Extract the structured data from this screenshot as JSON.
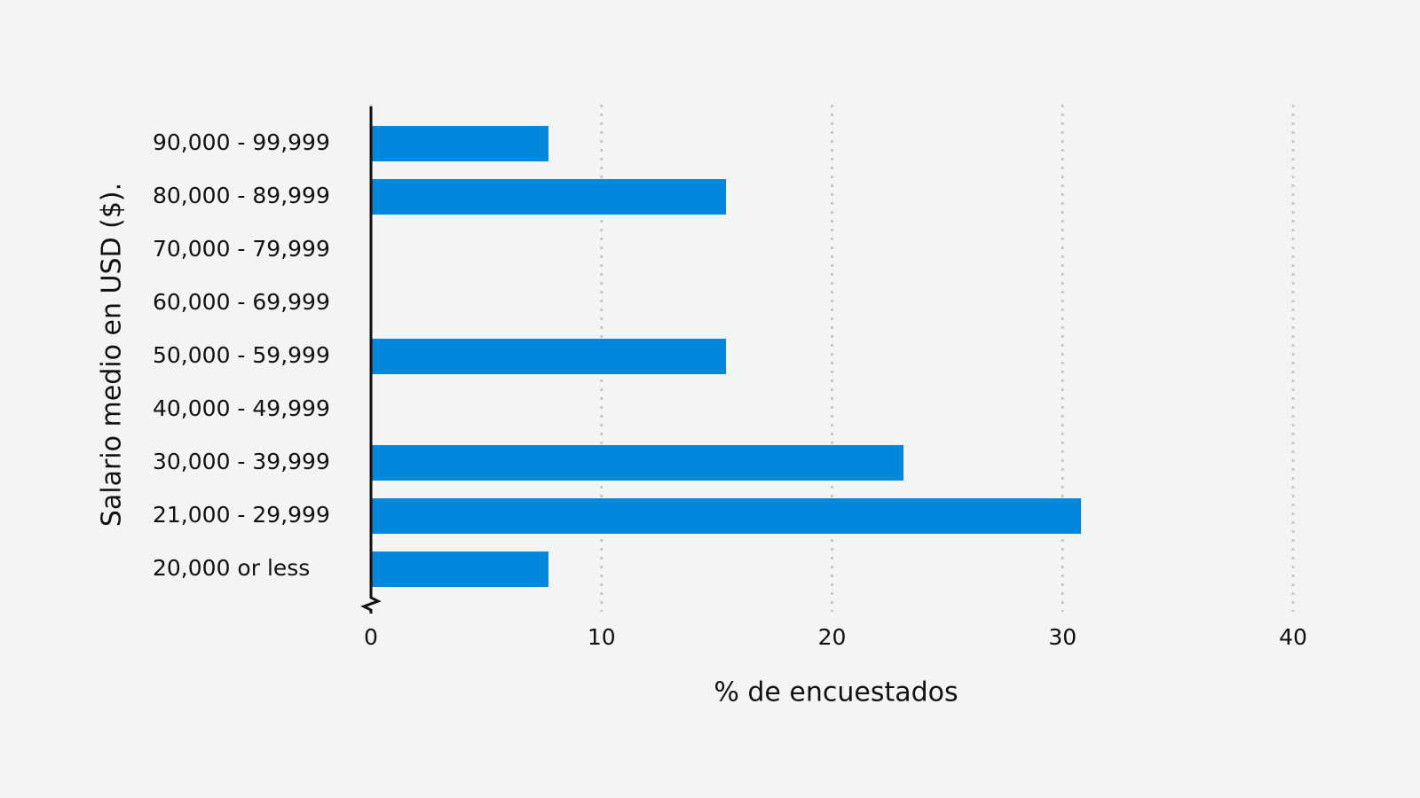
{
  "chart_data": {
    "type": "bar",
    "orientation": "horizontal",
    "xlabel": "% de encuestados",
    "ylabel": "Salario medio en USD ($).",
    "categories": [
      "90,000 - 99,999",
      "80,000 - 89,999",
      "70,000 - 79,999",
      "60,000 - 69,999",
      "50,000 - 59,999",
      "40,000 - 49,999",
      "30,000 - 39,999",
      "21,000 - 29,999",
      "20,000 or less"
    ],
    "values": [
      7.7,
      15.4,
      0,
      0,
      15.4,
      0,
      23.1,
      30.8,
      7.7
    ],
    "color": "#0088dd",
    "xlim": [
      0,
      40
    ],
    "xticks": [
      0,
      10,
      20,
      30,
      40
    ],
    "grid": true
  }
}
